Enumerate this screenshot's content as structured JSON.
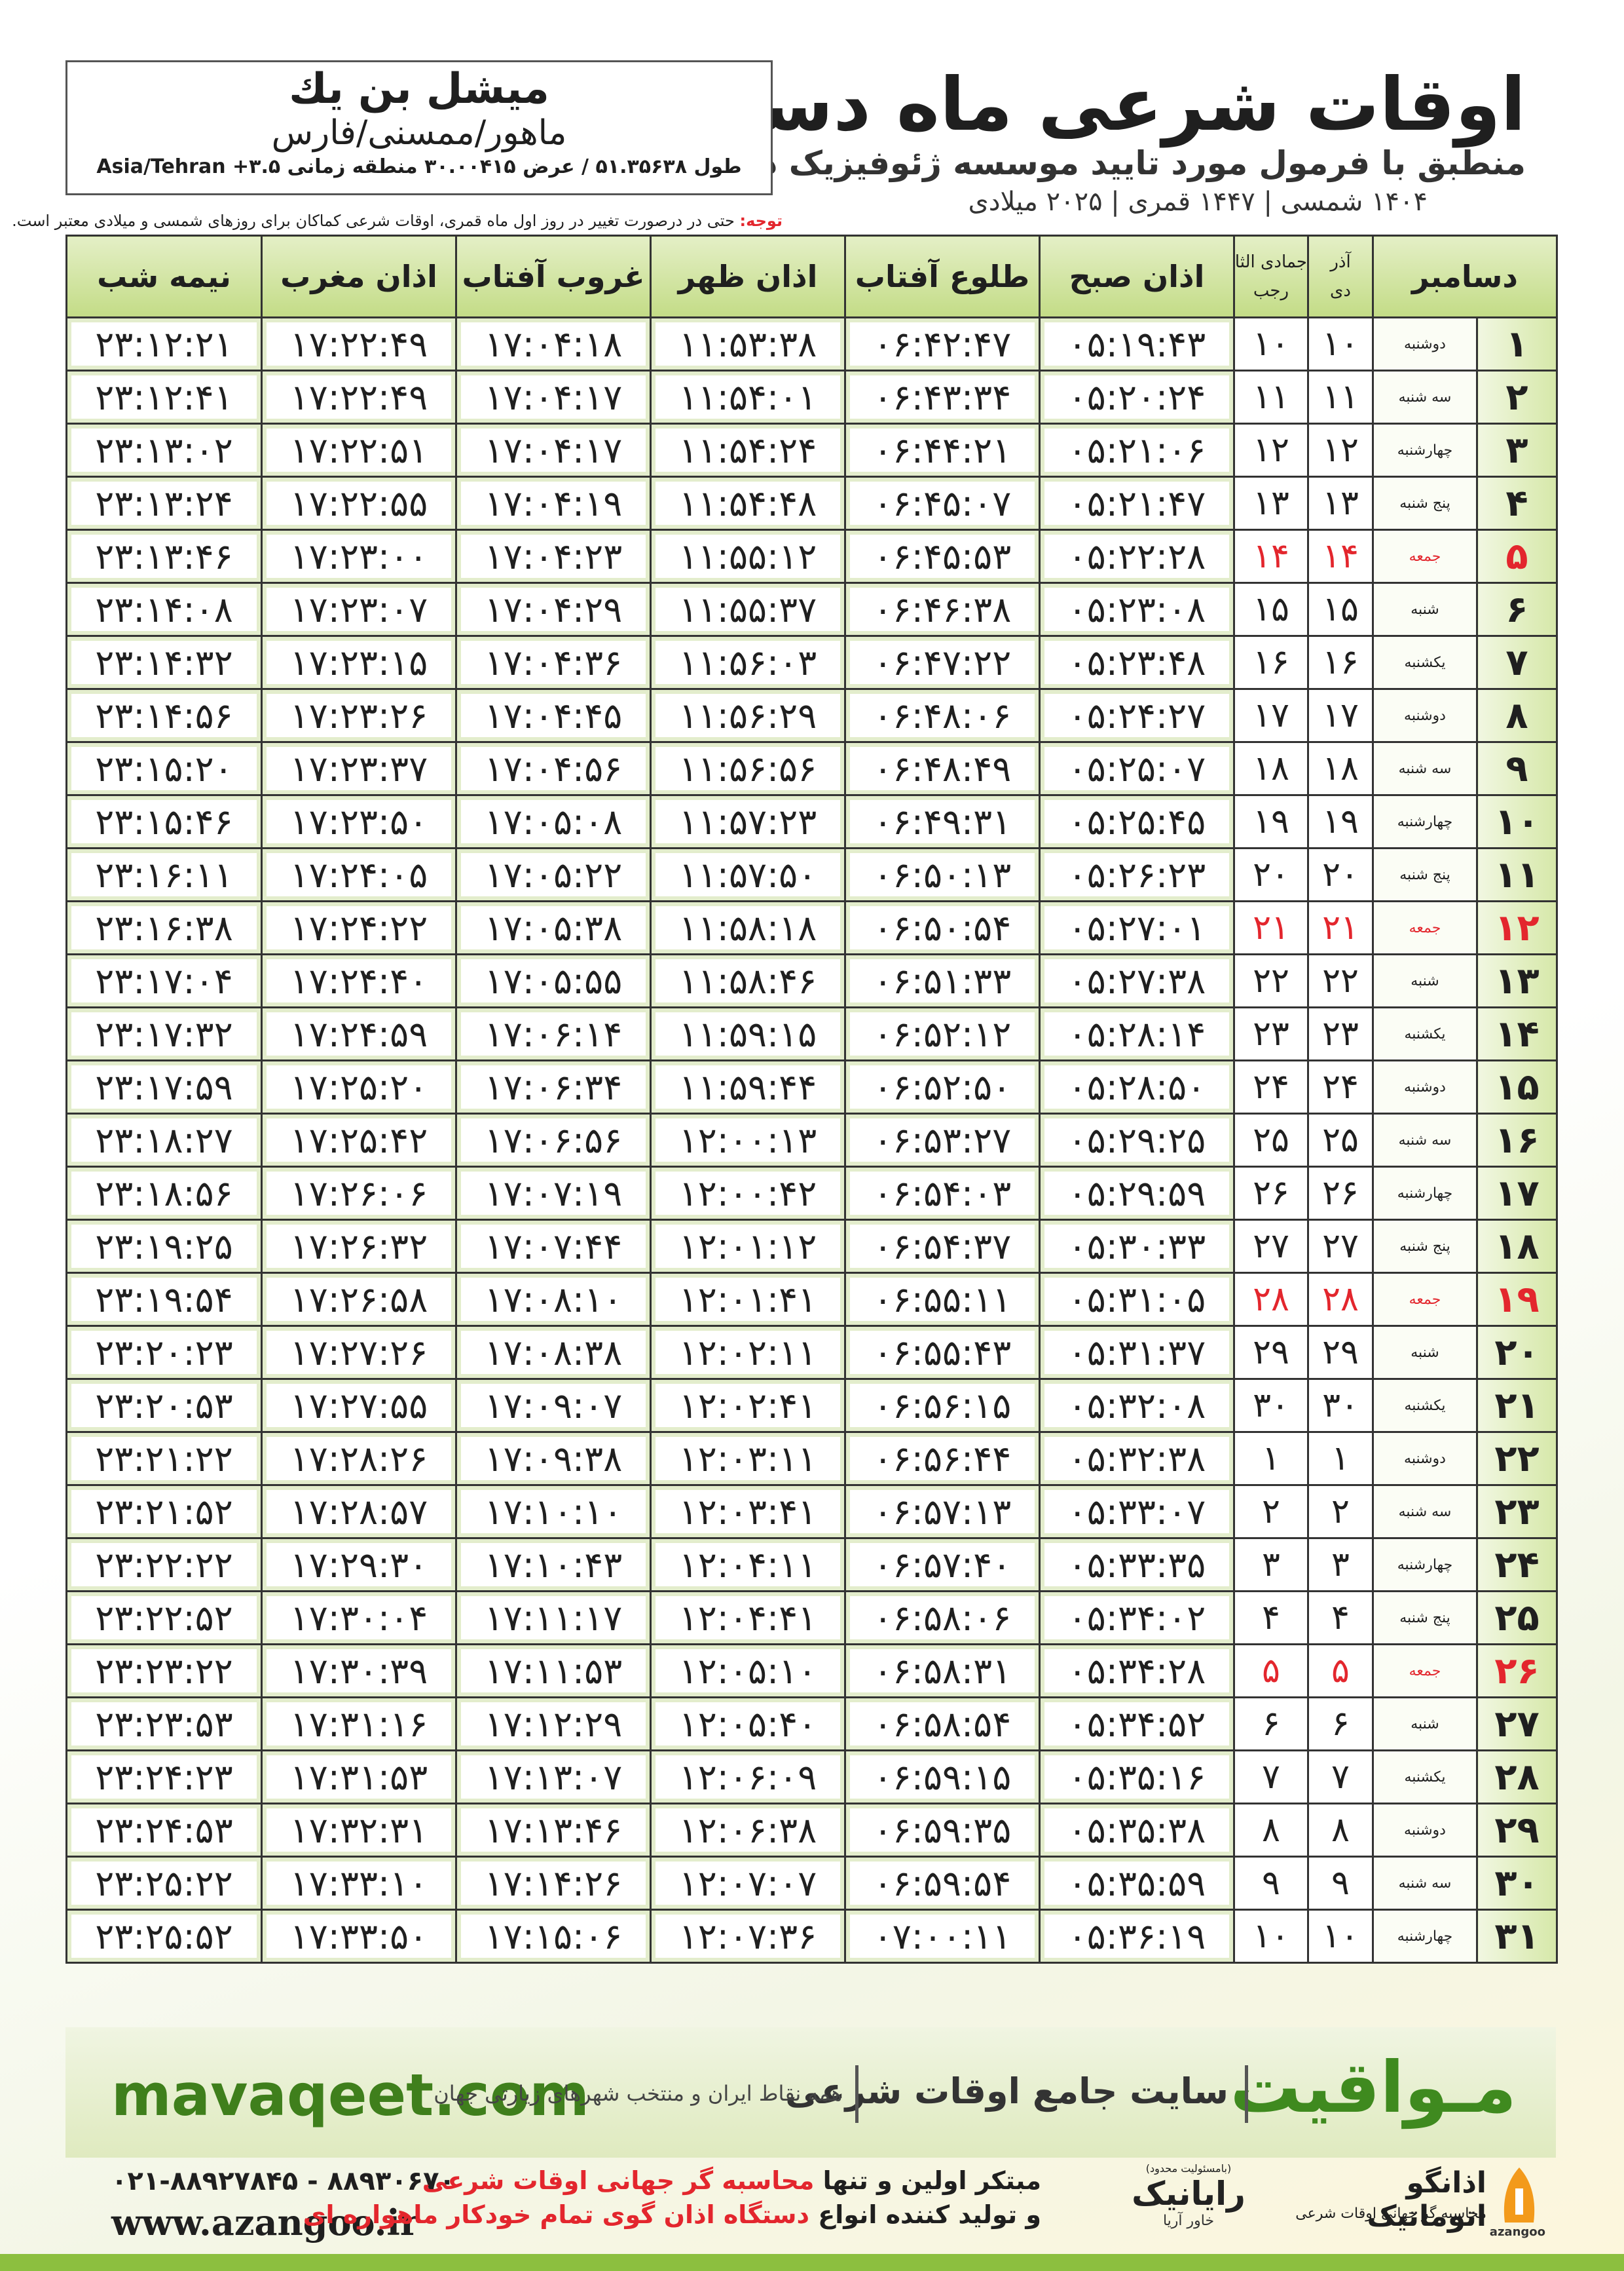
{
  "header": {
    "title": "اوقات شرعی ماه دسامبر",
    "subtitle": "منطبق با فرمول مورد تایید موسسه ژئوفیزیک دانشگاه تهران",
    "date_line": "۱۴۰۴ شمسی | ۱۴۴۷ قمری | ۲۰۲۵ میلادی"
  },
  "location": {
    "name": "میشل بن یك",
    "region": "ماهور/ممسنی/فارس",
    "coordinates": "طول ۵۱.۳۵۶۳۸ / عرض ۳۰.۰۰۴۱۵ منطقه زمانی ۳.۵+ Asia/Tehran"
  },
  "note": {
    "label": "توجه:",
    "text": "حتی در درصورت تغییر در روز اول ماه قمری، اوقات شرعی کماکان برای روزهای شمسی و میلادی معتبر است."
  },
  "table": {
    "columns": {
      "day": "دسامبر",
      "shamsi": [
        "آذر",
        "دی"
      ],
      "qamari": [
        "جمادی الثانی",
        "رجب"
      ],
      "times": [
        "اذان صبح",
        "طلوع آفتاب",
        "اذان ظهر",
        "غروب آفتاب",
        "اذان مغرب",
        "نیمه شب"
      ]
    },
    "holiday_color": "#e3262d",
    "rows": [
      {
        "cells": [
          "۱",
          "دوشنبه",
          "۱۰",
          "۱۰",
          "۰۵:۱۹:۴۳",
          "۰۶:۴۲:۴۷",
          "۱۱:۵۳:۳۸",
          "۱۷:۰۴:۱۸",
          "۱۷:۲۲:۴۹",
          "۲۳:۱۲:۲۱"
        ]
      },
      {
        "cells": [
          "۲",
          "سه شنبه",
          "۱۱",
          "۱۱",
          "۰۵:۲۰:۲۴",
          "۰۶:۴۳:۳۴",
          "۱۱:۵۴:۰۱",
          "۱۷:۰۴:۱۷",
          "۱۷:۲۲:۴۹",
          "۲۳:۱۲:۴۱"
        ]
      },
      {
        "cells": [
          "۳",
          "چهارشنبه",
          "۱۲",
          "۱۲",
          "۰۵:۲۱:۰۶",
          "۰۶:۴۴:۲۱",
          "۱۱:۵۴:۲۴",
          "۱۷:۰۴:۱۷",
          "۱۷:۲۲:۵۱",
          "۲۳:۱۳:۰۲"
        ]
      },
      {
        "cells": [
          "۴",
          "پنج شنبه",
          "۱۳",
          "۱۳",
          "۰۵:۲۱:۴۷",
          "۰۶:۴۵:۰۷",
          "۱۱:۵۴:۴۸",
          "۱۷:۰۴:۱۹",
          "۱۷:۲۲:۵۵",
          "۲۳:۱۳:۲۴"
        ]
      },
      {
        "cells": [
          "۵",
          "جمعه",
          "۱۴",
          "۱۴",
          "۰۵:۲۲:۲۸",
          "۰۶:۴۵:۵۳",
          "۱۱:۵۵:۱۲",
          "۱۷:۰۴:۲۳",
          "۱۷:۲۳:۰۰",
          "۲۳:۱۳:۴۶"
        ],
        "holiday": true
      },
      {
        "cells": [
          "۶",
          "شنبه",
          "۱۵",
          "۱۵",
          "۰۵:۲۳:۰۸",
          "۰۶:۴۶:۳۸",
          "۱۱:۵۵:۳۷",
          "۱۷:۰۴:۲۹",
          "۱۷:۲۳:۰۷",
          "۲۳:۱۴:۰۸"
        ]
      },
      {
        "cells": [
          "۷",
          "یکشنبه",
          "۱۶",
          "۱۶",
          "۰۵:۲۳:۴۸",
          "۰۶:۴۷:۲۲",
          "۱۱:۵۶:۰۳",
          "۱۷:۰۴:۳۶",
          "۱۷:۲۳:۱۵",
          "۲۳:۱۴:۳۲"
        ]
      },
      {
        "cells": [
          "۸",
          "دوشنبه",
          "۱۷",
          "۱۷",
          "۰۵:۲۴:۲۷",
          "۰۶:۴۸:۰۶",
          "۱۱:۵۶:۲۹",
          "۱۷:۰۴:۴۵",
          "۱۷:۲۳:۲۶",
          "۲۳:۱۴:۵۶"
        ]
      },
      {
        "cells": [
          "۹",
          "سه شنبه",
          "۱۸",
          "۱۸",
          "۰۵:۲۵:۰۷",
          "۰۶:۴۸:۴۹",
          "۱۱:۵۶:۵۶",
          "۱۷:۰۴:۵۶",
          "۱۷:۲۳:۳۷",
          "۲۳:۱۵:۲۰"
        ]
      },
      {
        "cells": [
          "۱۰",
          "چهارشنبه",
          "۱۹",
          "۱۹",
          "۰۵:۲۵:۴۵",
          "۰۶:۴۹:۳۱",
          "۱۱:۵۷:۲۳",
          "۱۷:۰۵:۰۸",
          "۱۷:۲۳:۵۰",
          "۲۳:۱۵:۴۶"
        ]
      },
      {
        "cells": [
          "۱۱",
          "پنج شنبه",
          "۲۰",
          "۲۰",
          "۰۵:۲۶:۲۳",
          "۰۶:۵۰:۱۳",
          "۱۱:۵۷:۵۰",
          "۱۷:۰۵:۲۲",
          "۱۷:۲۴:۰۵",
          "۲۳:۱۶:۱۱"
        ]
      },
      {
        "cells": [
          "۱۲",
          "جمعه",
          "۲۱",
          "۲۱",
          "۰۵:۲۷:۰۱",
          "۰۶:۵۰:۵۴",
          "۱۱:۵۸:۱۸",
          "۱۷:۰۵:۳۸",
          "۱۷:۲۴:۲۲",
          "۲۳:۱۶:۳۸"
        ],
        "holiday": true
      },
      {
        "cells": [
          "۱۳",
          "شنبه",
          "۲۲",
          "۲۲",
          "۰۵:۲۷:۳۸",
          "۰۶:۵۱:۳۳",
          "۱۱:۵۸:۴۶",
          "۱۷:۰۵:۵۵",
          "۱۷:۲۴:۴۰",
          "۲۳:۱۷:۰۴"
        ]
      },
      {
        "cells": [
          "۱۴",
          "یکشنبه",
          "۲۳",
          "۲۳",
          "۰۵:۲۸:۱۴",
          "۰۶:۵۲:۱۲",
          "۱۱:۵۹:۱۵",
          "۱۷:۰۶:۱۴",
          "۱۷:۲۴:۵۹",
          "۲۳:۱۷:۳۲"
        ]
      },
      {
        "cells": [
          "۱۵",
          "دوشنبه",
          "۲۴",
          "۲۴",
          "۰۵:۲۸:۵۰",
          "۰۶:۵۲:۵۰",
          "۱۱:۵۹:۴۴",
          "۱۷:۰۶:۳۴",
          "۱۷:۲۵:۲۰",
          "۲۳:۱۷:۵۹"
        ]
      },
      {
        "cells": [
          "۱۶",
          "سه شنبه",
          "۲۵",
          "۲۵",
          "۰۵:۲۹:۲۵",
          "۰۶:۵۳:۲۷",
          "۱۲:۰۰:۱۳",
          "۱۷:۰۶:۵۶",
          "۱۷:۲۵:۴۲",
          "۲۳:۱۸:۲۷"
        ]
      },
      {
        "cells": [
          "۱۷",
          "چهارشنبه",
          "۲۶",
          "۲۶",
          "۰۵:۲۹:۵۹",
          "۰۶:۵۴:۰۳",
          "۱۲:۰۰:۴۲",
          "۱۷:۰۷:۱۹",
          "۱۷:۲۶:۰۶",
          "۲۳:۱۸:۵۶"
        ]
      },
      {
        "cells": [
          "۱۸",
          "پنج شنبه",
          "۲۷",
          "۲۷",
          "۰۵:۳۰:۳۳",
          "۰۶:۵۴:۳۷",
          "۱۲:۰۱:۱۲",
          "۱۷:۰۷:۴۴",
          "۱۷:۲۶:۳۲",
          "۲۳:۱۹:۲۵"
        ]
      },
      {
        "cells": [
          "۱۹",
          "جمعه",
          "۲۸",
          "۲۸",
          "۰۵:۳۱:۰۵",
          "۰۶:۵۵:۱۱",
          "۱۲:۰۱:۴۱",
          "۱۷:۰۸:۱۰",
          "۱۷:۲۶:۵۸",
          "۲۳:۱۹:۵۴"
        ],
        "holiday": true
      },
      {
        "cells": [
          "۲۰",
          "شنبه",
          "۲۹",
          "۲۹",
          "۰۵:۳۱:۳۷",
          "۰۶:۵۵:۴۳",
          "۱۲:۰۲:۱۱",
          "۱۷:۰۸:۳۸",
          "۱۷:۲۷:۲۶",
          "۲۳:۲۰:۲۳"
        ]
      },
      {
        "cells": [
          "۲۱",
          "یکشنبه",
          "۳۰",
          "۳۰",
          "۰۵:۳۲:۰۸",
          "۰۶:۵۶:۱۵",
          "۱۲:۰۲:۴۱",
          "۱۷:۰۹:۰۷",
          "۱۷:۲۷:۵۵",
          "۲۳:۲۰:۵۳"
        ]
      },
      {
        "cells": [
          "۲۲",
          "دوشنبه",
          "۱",
          "۱",
          "۰۵:۳۲:۳۸",
          "۰۶:۵۶:۴۴",
          "۱۲:۰۳:۱۱",
          "۱۷:۰۹:۳۸",
          "۱۷:۲۸:۲۶",
          "۲۳:۲۱:۲۲"
        ]
      },
      {
        "cells": [
          "۲۳",
          "سه شنبه",
          "۲",
          "۲",
          "۰۵:۳۳:۰۷",
          "۰۶:۵۷:۱۳",
          "۱۲:۰۳:۴۱",
          "۱۷:۱۰:۱۰",
          "۱۷:۲۸:۵۷",
          "۲۳:۲۱:۵۲"
        ]
      },
      {
        "cells": [
          "۲۴",
          "چهارشنبه",
          "۳",
          "۳",
          "۰۵:۳۳:۳۵",
          "۰۶:۵۷:۴۰",
          "۱۲:۰۴:۱۱",
          "۱۷:۱۰:۴۳",
          "۱۷:۲۹:۳۰",
          "۲۳:۲۲:۲۲"
        ]
      },
      {
        "cells": [
          "۲۵",
          "پنج شنبه",
          "۴",
          "۴",
          "۰۵:۳۴:۰۲",
          "۰۶:۵۸:۰۶",
          "۱۲:۰۴:۴۱",
          "۱۷:۱۱:۱۷",
          "۱۷:۳۰:۰۴",
          "۲۳:۲۲:۵۲"
        ]
      },
      {
        "cells": [
          "۲۶",
          "جمعه",
          "۵",
          "۵",
          "۰۵:۳۴:۲۸",
          "۰۶:۵۸:۳۱",
          "۱۲:۰۵:۱۰",
          "۱۷:۱۱:۵۳",
          "۱۷:۳۰:۳۹",
          "۲۳:۲۳:۲۲"
        ],
        "holiday": true
      },
      {
        "cells": [
          "۲۷",
          "شنبه",
          "۶",
          "۶",
          "۰۵:۳۴:۵۲",
          "۰۶:۵۸:۵۴",
          "۱۲:۰۵:۴۰",
          "۱۷:۱۲:۲۹",
          "۱۷:۳۱:۱۶",
          "۲۳:۲۳:۵۳"
        ]
      },
      {
        "cells": [
          "۲۸",
          "یکشنبه",
          "۷",
          "۷",
          "۰۵:۳۵:۱۶",
          "۰۶:۵۹:۱۵",
          "۱۲:۰۶:۰۹",
          "۱۷:۱۳:۰۷",
          "۱۷:۳۱:۵۳",
          "۲۳:۲۴:۲۳"
        ]
      },
      {
        "cells": [
          "۲۹",
          "دوشنبه",
          "۸",
          "۸",
          "۰۵:۳۵:۳۸",
          "۰۶:۵۹:۳۵",
          "۱۲:۰۶:۳۸",
          "۱۷:۱۳:۴۶",
          "۱۷:۳۲:۳۱",
          "۲۳:۲۴:۵۳"
        ]
      },
      {
        "cells": [
          "۳۰",
          "سه شنبه",
          "۹",
          "۹",
          "۰۵:۳۵:۵۹",
          "۰۶:۵۹:۵۴",
          "۱۲:۰۷:۰۷",
          "۱۷:۱۴:۲۶",
          "۱۷:۳۳:۱۰",
          "۲۳:۲۵:۲۲"
        ]
      },
      {
        "cells": [
          "۳۱",
          "چهارشنبه",
          "۱۰",
          "۱۰",
          "۰۵:۳۶:۱۹",
          "۰۷:۰۰:۱۱",
          "۱۲:۰۷:۳۶",
          "۱۷:۱۵:۰۶",
          "۱۷:۳۳:۵۰",
          "۲۳:۲۵:۵۲"
        ]
      }
    ]
  },
  "footer": {
    "brand": "مـواقیت",
    "tagline": "سایت جامع اوقات شرعی",
    "subtag": "همه نقاط ایران و منتخب شهرهای زیارتی جهان",
    "site": "mavaqeet.com"
  },
  "bottom": {
    "phone": "۰۲۱-۸۸۹۲۷۸۴۵ - ۸۸۹۳۰۶۷۰",
    "website": "www.azangoo.ir",
    "line1": [
      "مبتکر اولین و تنها",
      "محاسبه گر جهانی اوقات شرعی"
    ],
    "line2": [
      "و تولید کننده انواع",
      "دستگاه اذان گوی تمام خودکار ماهواره ای"
    ],
    "logo_rayanik": {
      "small": "(بامسئولیت محدود)",
      "name": "رایانیک",
      "sub": "خاور آریا"
    },
    "logo_azangoo": {
      "name": "اذانگو اتوماتیک",
      "sub": "محاسبه گر جهانی اوقات شرعی",
      "latin": "azangoo"
    }
  }
}
